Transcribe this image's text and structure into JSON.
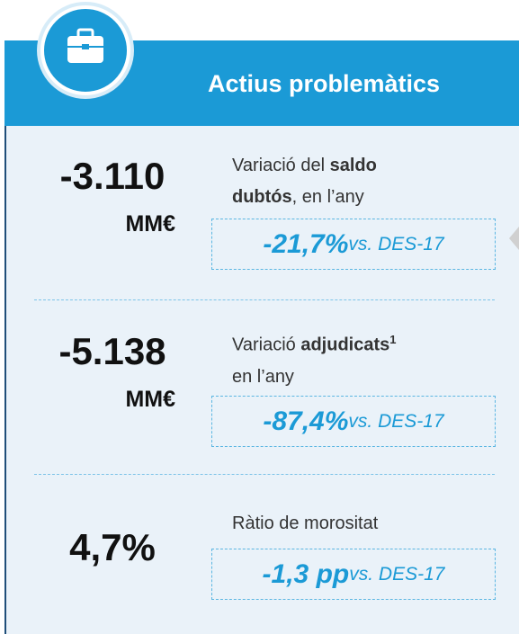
{
  "header": {
    "title": "Actius problemàtics"
  },
  "rows": [
    {
      "value": "-3.110",
      "unit": "MM€",
      "description": [
        [
          "Variació del ",
          "saldo"
        ],
        [
          "dubtós",
          ", en l’any"
        ]
      ],
      "change": "-21,7%",
      "comparison": "vs. DES-17"
    },
    {
      "value": "-5.138",
      "unit": "MM€",
      "description": [
        [
          "Variació ",
          "adjudicats",
          "1"
        ],
        [
          "en l’any"
        ]
      ],
      "change": "-87,4%",
      "comparison": "vs. DES-17"
    },
    {
      "value": "4,7%",
      "description": [
        [
          "Ràtio de morositat"
        ]
      ],
      "change": "-1,3 pp",
      "comparison": "vs. DES-17"
    }
  ]
}
